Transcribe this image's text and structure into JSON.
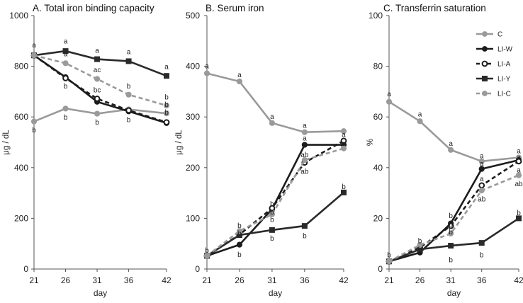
{
  "series_styles": {
    "C": {
      "color": "#9a9a9a",
      "dash": "",
      "marker": "circle",
      "fill": "#9a9a9a"
    },
    "LI-W": {
      "color": "#1c1c1c",
      "dash": "",
      "marker": "circle",
      "fill": "#1c1c1c"
    },
    "LI-A": {
      "color": "#1c1c1c",
      "dash": "6,4",
      "marker": "circle",
      "fill": "#ffffff"
    },
    "LI-Y": {
      "color": "#2a2a2a",
      "dash": "",
      "marker": "square",
      "fill": "#2a2a2a"
    },
    "LI-C": {
      "color": "#9a9a9a",
      "dash": "6,4",
      "marker": "circle",
      "fill": "#9a9a9a"
    }
  },
  "chart_data": [
    {
      "type": "line",
      "title": "A. Total iron binding capacity",
      "xlabel": "day",
      "ylabel": "μg / dL",
      "x": [
        21,
        26,
        31,
        36,
        42
      ],
      "xticks": [
        "21",
        "26",
        "31",
        "36",
        "42"
      ],
      "ylim": [
        0,
        1000
      ],
      "yticks": [
        "0",
        "200",
        "400",
        "600",
        "800",
        "1000"
      ],
      "series": [
        {
          "name": "C",
          "values": [
            582,
            633,
            613,
            630,
            614
          ]
        },
        {
          "name": "LI-W",
          "values": [
            843,
            757,
            660,
            622,
            576
          ]
        },
        {
          "name": "LI-A",
          "values": [
            843,
            753,
            672,
            626,
            579
          ]
        },
        {
          "name": "LI-Y",
          "values": [
            843,
            860,
            828,
            820,
            762
          ]
        },
        {
          "name": "LI-C",
          "values": [
            843,
            812,
            750,
            688,
            645
          ]
        }
      ],
      "annotations": [
        {
          "x": 21,
          "y": 882,
          "text": "a"
        },
        {
          "x": 21,
          "y": 548,
          "text": "b"
        },
        {
          "x": 26,
          "y": 898,
          "text": "a"
        },
        {
          "x": 26,
          "y": 848,
          "text": "a"
        },
        {
          "x": 26,
          "y": 720,
          "text": "b"
        },
        {
          "x": 26,
          "y": 598,
          "text": "b"
        },
        {
          "x": 31,
          "y": 862,
          "text": "a"
        },
        {
          "x": 31,
          "y": 785,
          "text": "ac"
        },
        {
          "x": 31,
          "y": 705,
          "text": "bc"
        },
        {
          "x": 31,
          "y": 578,
          "text": "b"
        },
        {
          "x": 36,
          "y": 856,
          "text": "a"
        },
        {
          "x": 36,
          "y": 720,
          "text": "b"
        },
        {
          "x": 36,
          "y": 588,
          "text": "b"
        },
        {
          "x": 42,
          "y": 798,
          "text": "a"
        },
        {
          "x": 42,
          "y": 678,
          "text": "b"
        },
        {
          "x": 42,
          "y": 648,
          "text": "b"
        },
        {
          "x": 42,
          "y": 618,
          "text": "b"
        }
      ]
    },
    {
      "type": "line",
      "title": "B. Serum iron",
      "xlabel": "day",
      "ylabel": "μg / dL",
      "x": [
        21,
        26,
        31,
        36,
        42
      ],
      "xticks": [
        "21",
        "26",
        "31",
        "36",
        "42"
      ],
      "ylim": [
        0,
        500
      ],
      "yticks": [
        "0",
        "100",
        "200",
        "300",
        "400",
        "500"
      ],
      "series": [
        {
          "name": "C",
          "values": [
            386,
            370,
            288,
            270,
            272
          ]
        },
        {
          "name": "LI-W",
          "values": [
            26,
            48,
            118,
            245,
            245
          ]
        },
        {
          "name": "LI-A",
          "values": [
            26,
            68,
            120,
            210,
            253
          ]
        },
        {
          "name": "LI-Y",
          "values": [
            26,
            67,
            77,
            85,
            151
          ]
        },
        {
          "name": "LI-C",
          "values": [
            26,
            75,
            108,
            215,
            238
          ]
        }
      ],
      "annotations": [
        {
          "x": 21,
          "y": 400,
          "text": "a"
        },
        {
          "x": 21,
          "y": 36,
          "text": "b"
        },
        {
          "x": 26,
          "y": 383,
          "text": "a"
        },
        {
          "x": 26,
          "y": 85,
          "text": "b"
        },
        {
          "x": 26,
          "y": 70,
          "text": "b"
        },
        {
          "x": 26,
          "y": 28,
          "text": "b"
        },
        {
          "x": 31,
          "y": 300,
          "text": "a"
        },
        {
          "x": 31,
          "y": 128,
          "text": "b"
        },
        {
          "x": 31,
          "y": 112,
          "text": "b"
        },
        {
          "x": 31,
          "y": 97,
          "text": "b"
        },
        {
          "x": 31,
          "y": 60,
          "text": "b"
        },
        {
          "x": 36,
          "y": 283,
          "text": "a"
        },
        {
          "x": 36,
          "y": 258,
          "text": "a"
        },
        {
          "x": 36,
          "y": 225,
          "text": "ab"
        },
        {
          "x": 36,
          "y": 192,
          "text": "ab"
        },
        {
          "x": 36,
          "y": 65,
          "text": "b"
        },
        {
          "x": 42,
          "y": 265,
          "text": "a"
        },
        {
          "x": 42,
          "y": 247,
          "text": "a"
        },
        {
          "x": 42,
          "y": 162,
          "text": "b"
        }
      ]
    },
    {
      "type": "line",
      "title": "C. Transferrin saturation",
      "xlabel": "day",
      "ylabel": "%",
      "x": [
        21,
        26,
        31,
        36,
        42
      ],
      "xticks": [
        "21",
        "26",
        "31",
        "36",
        "42"
      ],
      "ylim": [
        0,
        100
      ],
      "yticks": [
        "0",
        "20",
        "40",
        "60",
        "80",
        "100"
      ],
      "series": [
        {
          "name": "C",
          "values": [
            66,
            58.3,
            47,
            42.5,
            44
          ]
        },
        {
          "name": "LI-W",
          "values": [
            3,
            6.5,
            18,
            39.5,
            43
          ]
        },
        {
          "name": "LI-A",
          "values": [
            3,
            8.5,
            17,
            33,
            42.5
          ]
        },
        {
          "name": "LI-Y",
          "values": [
            3,
            7.8,
            9.2,
            10.3,
            20
          ]
        },
        {
          "name": "LI-C",
          "values": [
            3,
            9.5,
            14,
            31,
            37
          ]
        }
      ],
      "annotations": [
        {
          "x": 21,
          "y": 69,
          "text": "a"
        },
        {
          "x": 21,
          "y": 5.5,
          "text": "b"
        },
        {
          "x": 26,
          "y": 61,
          "text": "a"
        },
        {
          "x": 26,
          "y": 11,
          "text": "b"
        },
        {
          "x": 26,
          "y": 7.5,
          "text": "b"
        },
        {
          "x": 31,
          "y": 49.5,
          "text": "a"
        },
        {
          "x": 31,
          "y": 21,
          "text": "b"
        },
        {
          "x": 31,
          "y": 17.5,
          "text": "b"
        },
        {
          "x": 31,
          "y": 14.5,
          "text": "b"
        },
        {
          "x": 31,
          "y": 3.5,
          "text": "b"
        },
        {
          "x": 36,
          "y": 44.5,
          "text": "a"
        },
        {
          "x": 36,
          "y": 41.5,
          "text": "a"
        },
        {
          "x": 36,
          "y": 35.5,
          "text": "a"
        },
        {
          "x": 36,
          "y": 27.5,
          "text": "ab"
        },
        {
          "x": 36,
          "y": 5.5,
          "text": "b"
        },
        {
          "x": 42,
          "y": 46.5,
          "text": "a"
        },
        {
          "x": 42,
          "y": 44,
          "text": "a"
        },
        {
          "x": 42,
          "y": 39,
          "text": "a"
        },
        {
          "x": 42,
          "y": 33.5,
          "text": "ab"
        },
        {
          "x": 42,
          "y": 22,
          "text": "b"
        }
      ],
      "legend": {
        "position": "top-right",
        "entries": [
          "C",
          "LI-W",
          "LI-A",
          "LI-Y",
          "LI-C"
        ]
      }
    }
  ]
}
